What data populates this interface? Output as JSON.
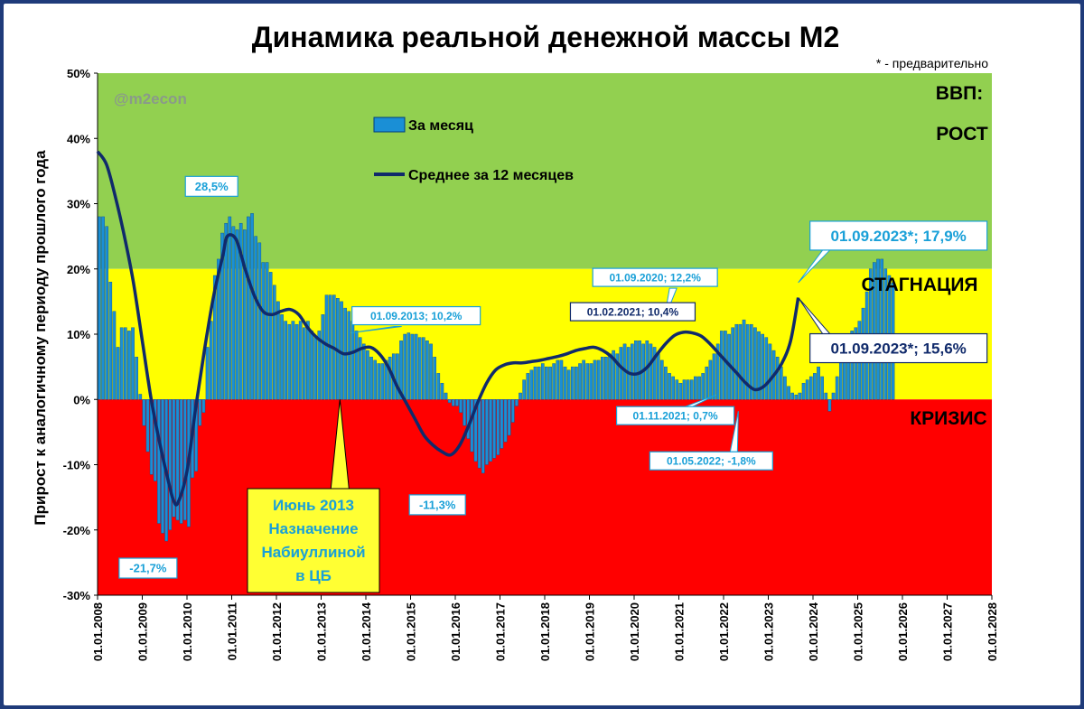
{
  "chart_data": {
    "type": "bar",
    "title": "Динамика реальной денежной массы М2",
    "note": "* - предварительно",
    "watermark": "@m2econ",
    "ylabel": "Прирост к аналогичному периоду прошлого года",
    "xlabel": "",
    "ylim": [
      -30,
      50
    ],
    "y_ticks": [
      "50%",
      "40%",
      "30%",
      "20%",
      "10%",
      "0%",
      "-10%",
      "-20%",
      "-30%"
    ],
    "y_tick_values": [
      50,
      40,
      30,
      20,
      10,
      0,
      -10,
      -20,
      -30
    ],
    "x_range": [
      2008.0,
      2028.0
    ],
    "x_ticks": [
      "01.01.2008",
      "01.01.2009",
      "01.01.2010",
      "01.01.2011",
      "01.01.2012",
      "01.01.2013",
      "01.01.2014",
      "01.01.2015",
      "01.01.2016",
      "01.01.2017",
      "01.01.2018",
      "01.01.2019",
      "01.01.2020",
      "01.01.2021",
      "01.01.2022",
      "01.01.2023",
      "01.01.2024",
      "01.01.2025",
      "01.01.2026",
      "01.01.2027",
      "01.01.2028"
    ],
    "zones": [
      {
        "label": "ВВП:",
        "label2": "РОСТ",
        "from": 20,
        "to": 50,
        "color": "#92d050"
      },
      {
        "label": "СТАГНАЦИЯ",
        "from": 0,
        "to": 20,
        "color": "#ffff00"
      },
      {
        "label": "КРИЗИС",
        "from": -30,
        "to": 0,
        "color": "#ff0000"
      }
    ],
    "legend": {
      "position": "top-left"
    },
    "series": [
      {
        "name": "За месяц",
        "type": "bar",
        "color": "#1a8fd6",
        "start": "2008-01",
        "values": [
          28,
          28,
          26.5,
          18,
          13.5,
          8,
          11,
          11,
          10.5,
          11,
          6.5,
          0.8,
          -4,
          -8,
          -11.5,
          -12.5,
          -19,
          -20.5,
          -21.7,
          -20,
          -18,
          -18.5,
          -19,
          -18.5,
          -19.5,
          -12,
          -11,
          -4,
          -2,
          8,
          12,
          19,
          21.5,
          25.5,
          27,
          28,
          26.5,
          26,
          27,
          26,
          28,
          28.5,
          25,
          24,
          21,
          21,
          19.5,
          17.5,
          15,
          13,
          12,
          11.5,
          12,
          11.5,
          12,
          11,
          12,
          10.5,
          9.5,
          10.5,
          13,
          16,
          16,
          16,
          15.5,
          15,
          14,
          13.5,
          12,
          10.5,
          9.5,
          8.5,
          7.5,
          6.5,
          6,
          5.5,
          5.5,
          6,
          6.5,
          7,
          7,
          9,
          10,
          10.2,
          10,
          10,
          9.5,
          9.5,
          9,
          8.5,
          6.5,
          4,
          2.5,
          1,
          -0.5,
          -1,
          -1,
          -2,
          -4,
          -6,
          -8,
          -9.5,
          -10.5,
          -11.3,
          -10,
          -9.5,
          -9,
          -8.5,
          -7.5,
          -6.5,
          -5.5,
          -3.5,
          -1,
          1,
          3,
          4,
          4.5,
          5,
          5,
          5.5,
          5,
          5,
          5.5,
          6,
          6,
          5,
          4.5,
          5,
          5,
          5.5,
          6,
          5.5,
          5.5,
          6,
          6,
          6.5,
          6.5,
          7,
          7.5,
          7,
          8,
          8.5,
          8,
          8.5,
          9,
          9,
          8.5,
          9,
          8.5,
          8,
          7,
          6,
          5,
          4,
          3.5,
          3,
          2.5,
          3,
          3,
          3,
          3.5,
          3.5,
          4,
          5,
          6,
          7,
          8.5,
          10.5,
          10.5,
          10,
          11,
          11.5,
          11.5,
          12.2,
          11.5,
          11.5,
          11,
          10.4,
          10,
          9.5,
          8.5,
          7.5,
          6.5,
          5,
          3.5,
          2,
          1,
          0.7,
          1,
          2.5,
          3,
          3.5,
          4,
          5,
          3.5,
          1,
          -1.8,
          1,
          3.5,
          6,
          8,
          9.5,
          10.5,
          11,
          12,
          14,
          16.5,
          20,
          21,
          21.5,
          21.5,
          20,
          19,
          17.9
        ]
      },
      {
        "name": "Среднее за 12 месяцев",
        "type": "line",
        "color": "#102a6b",
        "x": [
          2008.0,
          2008.2,
          2008.4,
          2008.6,
          2008.8,
          2009.0,
          2009.2,
          2009.4,
          2009.6,
          2009.7,
          2009.8,
          2010.0,
          2010.2,
          2010.4,
          2010.6,
          2010.8,
          2010.9,
          2011.1,
          2011.3,
          2011.5,
          2011.7,
          2011.9,
          2012.1,
          2012.3,
          2012.5,
          2012.7,
          2012.9,
          2013.1,
          2013.3,
          2013.5,
          2013.7,
          2013.9,
          2014.1,
          2014.3,
          2014.5,
          2014.7,
          2014.9,
          2015.1,
          2015.3,
          2015.5,
          2015.7,
          2015.9,
          2016.1,
          2016.3,
          2016.5,
          2016.7,
          2016.9,
          2017.1,
          2017.3,
          2017.5,
          2017.7,
          2017.9,
          2018.1,
          2018.3,
          2018.5,
          2018.7,
          2018.9,
          2019.1,
          2019.3,
          2019.5,
          2019.7,
          2019.9,
          2020.1,
          2020.3,
          2020.5,
          2020.7,
          2020.9,
          2021.1,
          2021.3,
          2021.5,
          2021.7,
          2021.9,
          2022.1,
          2022.3,
          2022.5,
          2022.7,
          2022.9,
          2023.1,
          2023.3,
          2023.5,
          2023.67
        ],
        "values": [
          38,
          36,
          31,
          25,
          18,
          9,
          0,
          -7,
          -13,
          -15.5,
          -15.8,
          -11,
          -1,
          8,
          16,
          22,
          25,
          24.5,
          20,
          16,
          13.5,
          13,
          13.5,
          13.8,
          13,
          11,
          9.5,
          8.5,
          7.8,
          7,
          7.2,
          7.8,
          8,
          7,
          5,
          2,
          -0.5,
          -3,
          -5.5,
          -7,
          -8,
          -8.5,
          -7,
          -4,
          -0.5,
          2.5,
          4.5,
          5.3,
          5.6,
          5.6,
          5.8,
          6,
          6.3,
          6.6,
          7,
          7.5,
          7.8,
          8,
          7.5,
          6.5,
          5,
          4,
          4,
          5,
          6.8,
          8.5,
          9.8,
          10.3,
          10.2,
          9.7,
          8.5,
          7,
          5.5,
          4,
          2.5,
          1.5,
          2,
          3.5,
          5.5,
          9,
          15.6
        ]
      }
    ],
    "annotations": [
      {
        "text": "28,5%",
        "x": 2010.55,
        "y": 28.5
      },
      {
        "text": "-21,7%",
        "x": 2009.25,
        "y": -21.7
      },
      {
        "text": "-11,3%",
        "x": 2015.6,
        "y": -11.3
      },
      {
        "text": "01.09.2013; 10,2%",
        "x": 2013.67,
        "y": 10.2
      },
      {
        "text": "01.09.2020; 12,2%",
        "x": 2020.67,
        "y": 12.2
      },
      {
        "text": "01.02.2021; 10,4%",
        "x": 2021.08,
        "y": 10.4
      },
      {
        "text": "01.11.2021; 0,7%",
        "x": 2021.83,
        "y": 0.7
      },
      {
        "text": "01.05.2022; -1,8%",
        "x": 2022.33,
        "y": -1.8
      },
      {
        "text": "01.09.2023*; 17,9%",
        "x": 2023.67,
        "y": 17.9
      },
      {
        "text": "01.09.2023*; 15,6%",
        "x": 2023.67,
        "y": 15.6
      }
    ],
    "callout": {
      "lines": [
        "Июнь 2013",
        "Назначение",
        "Набиуллиной",
        "в ЦБ"
      ],
      "x": 2013.42
    }
  }
}
